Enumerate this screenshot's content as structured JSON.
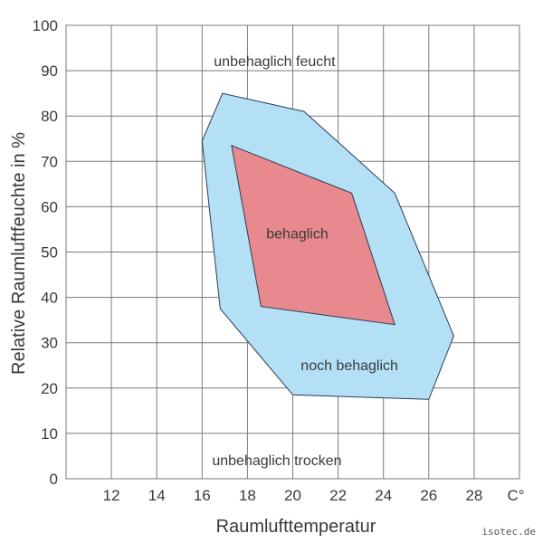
{
  "chart_data": {
    "type": "area",
    "xlabel": "Raumlufttemperatur",
    "ylabel": "Relative Raumluftfeuchte in %",
    "x_unit_label": "C°",
    "xlim": [
      10,
      30
    ],
    "ylim": [
      0,
      100
    ],
    "x_ticks": [
      12,
      14,
      16,
      18,
      20,
      22,
      24,
      26,
      28
    ],
    "y_ticks": [
      0,
      10,
      20,
      30,
      40,
      50,
      60,
      70,
      80,
      90,
      100
    ],
    "grid": true,
    "series": [
      {
        "name": "noch behaglich",
        "color": "#b3e0f5",
        "points": [
          [
            16.9,
            85
          ],
          [
            20.5,
            81
          ],
          [
            24.5,
            63
          ],
          [
            27.1,
            31.5
          ],
          [
            26.0,
            17.5
          ],
          [
            20.0,
            18.5
          ],
          [
            16.8,
            37.5
          ],
          [
            16.0,
            74.5
          ]
        ]
      },
      {
        "name": "behaglich",
        "color": "#e8898e",
        "points": [
          [
            17.3,
            73.5
          ],
          [
            22.6,
            63
          ],
          [
            24.5,
            34
          ],
          [
            18.6,
            38
          ]
        ]
      }
    ],
    "annotations": [
      {
        "text": "unbehaglich feucht",
        "x": 19.2,
        "y": 92
      },
      {
        "text": "behaglich",
        "x": 20.2,
        "y": 54
      },
      {
        "text": "noch behaglich",
        "x": 22.5,
        "y": 25
      },
      {
        "text": "unbehaglich trocken",
        "x": 19.3,
        "y": 4
      }
    ]
  },
  "credit": "isotec.de"
}
